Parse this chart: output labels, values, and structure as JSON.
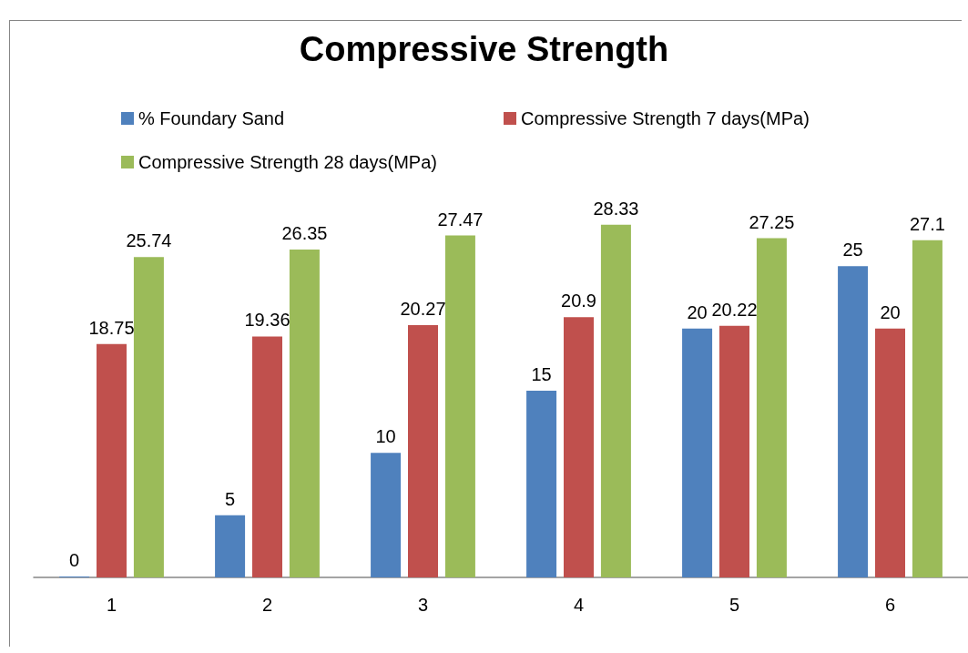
{
  "chart_data": {
    "type": "bar",
    "title": "Compressive Strength",
    "categories": [
      "1",
      "2",
      "3",
      "4",
      "5",
      "6"
    ],
    "series": [
      {
        "name": "% Foundary Sand",
        "color": "#4f81bd",
        "values": [
          0,
          5,
          10,
          15,
          20,
          25
        ]
      },
      {
        "name": "Compressive Strength 7 days(MPa)",
        "color": "#c0504d",
        "values": [
          18.75,
          19.36,
          20.27,
          20.9,
          20.22,
          20
        ]
      },
      {
        "name": "Compressive Strength 28 days(MPa)",
        "color": "#9bbb59",
        "values": [
          25.74,
          26.35,
          27.47,
          28.33,
          27.25,
          27.1
        ]
      }
    ],
    "data_labels": true,
    "legend": "top"
  }
}
